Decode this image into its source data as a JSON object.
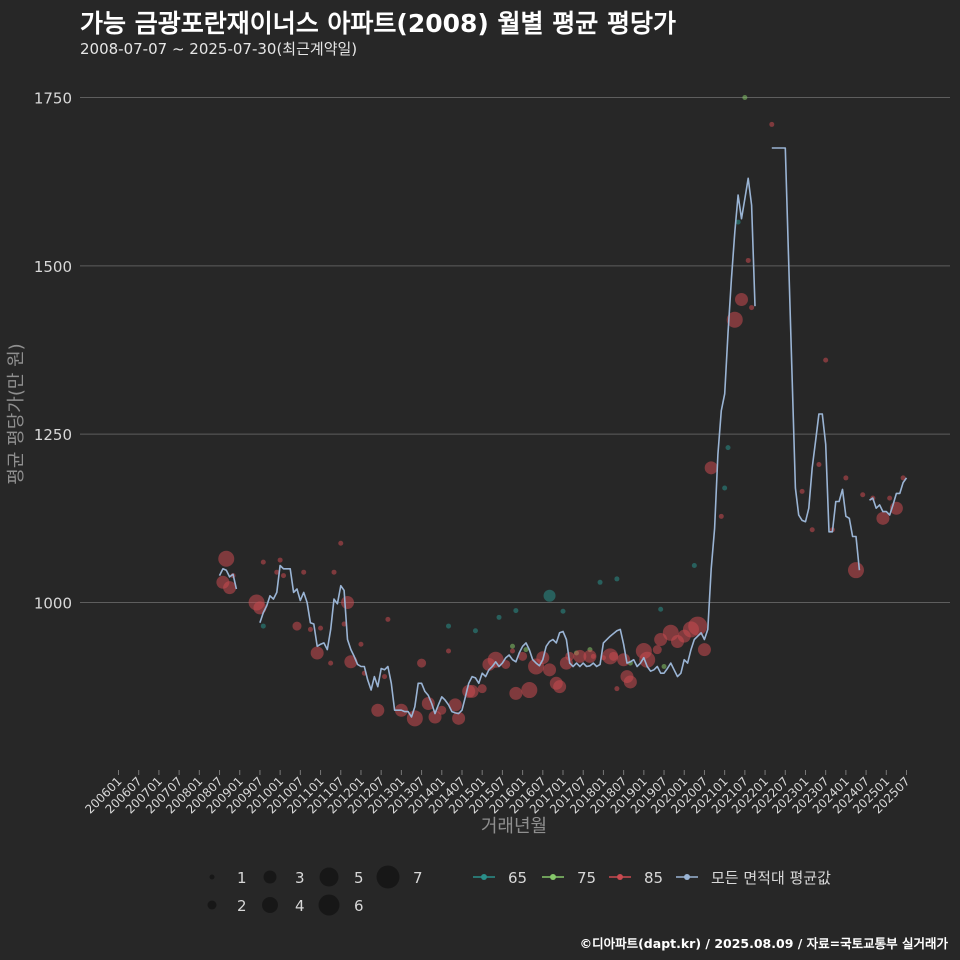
{
  "header": {
    "title": "가능 금광포란재이너스 아파트(2008) 월별 평균 평당가",
    "subtitle": "2008-07-07 ~ 2025-07-30(최근계약일)"
  },
  "credit": "©디아파트(dapt.kr) / 2025.08.09 / 자료=국토교통부 실거래가",
  "colors": {
    "background": "#272727",
    "grid": "#5e5e5e",
    "avg_line": "#9ab4d4",
    "area_65": "#2a8f8a",
    "area_75": "#86c76a",
    "area_85": "#c94a50"
  },
  "chart_data": {
    "type": "line+scatter",
    "xlabel": "거래년월",
    "ylabel": "평균 평당가(만 원)",
    "ylim": [
      770,
      1760
    ],
    "yticks": [
      1000,
      1250,
      1500,
      1750
    ],
    "grid": "horizontal",
    "x_ticks": [
      "200601",
      "200607",
      "200701",
      "200707",
      "200801",
      "200807",
      "200901",
      "200907",
      "201001",
      "201007",
      "201101",
      "201107",
      "201201",
      "201207",
      "201301",
      "201307",
      "201401",
      "201407",
      "201501",
      "201507",
      "201601",
      "201607",
      "201701",
      "201707",
      "201801",
      "201807",
      "201901",
      "201907",
      "202001",
      "202007",
      "202101",
      "202107",
      "202201",
      "202207",
      "202301",
      "202307",
      "202401",
      "202407",
      "202501",
      "202507"
    ],
    "size_legend": {
      "title": "",
      "values": [
        1,
        2,
        3,
        4,
        5,
        6,
        7
      ]
    },
    "color_legend": [
      "65",
      "75",
      "85",
      "모든 면적대 평균값"
    ],
    "series_avg": {
      "name": "모든 면적대 평균값",
      "points": [
        [
          "2008-07",
          1040
        ],
        [
          "2008-08",
          1050
        ],
        [
          "2008-09",
          1048
        ],
        [
          "2008-10",
          1038
        ],
        [
          "2008-11",
          1042
        ],
        [
          "2008-12",
          1020
        ],
        [
          "2009-07",
          970
        ],
        [
          "2009-08",
          985
        ],
        [
          "2009-09",
          995
        ],
        [
          "2009-10",
          1010
        ],
        [
          "2009-11",
          1005
        ],
        [
          "2009-12",
          1015
        ],
        [
          "2010-01",
          1055
        ],
        [
          "2010-02",
          1050
        ],
        [
          "2010-03",
          1050
        ],
        [
          "2010-04",
          1050
        ],
        [
          "2010-05",
          1015
        ],
        [
          "2010-06",
          1020
        ],
        [
          "2010-07",
          1003
        ],
        [
          "2010-08",
          1015
        ],
        [
          "2010-09",
          1000
        ],
        [
          "2010-10",
          970
        ],
        [
          "2010-11",
          968
        ],
        [
          "2010-12",
          935
        ],
        [
          "2011-01",
          938
        ],
        [
          "2011-02",
          940
        ],
        [
          "2011-03",
          930
        ],
        [
          "2011-04",
          960
        ],
        [
          "2011-05",
          1005
        ],
        [
          "2011-06",
          998
        ],
        [
          "2011-07",
          1025
        ],
        [
          "2011-08",
          1018
        ],
        [
          "2011-09",
          945
        ],
        [
          "2011-10",
          930
        ],
        [
          "2011-11",
          920
        ],
        [
          "2011-12",
          908
        ],
        [
          "2012-01",
          905
        ],
        [
          "2012-02",
          905
        ],
        [
          "2012-03",
          885
        ],
        [
          "2012-04",
          870
        ],
        [
          "2012-05",
          890
        ],
        [
          "2012-06",
          875
        ],
        [
          "2012-07",
          902
        ],
        [
          "2012-08",
          900
        ],
        [
          "2012-09",
          905
        ],
        [
          "2012-10",
          880
        ],
        [
          "2012-11",
          840
        ],
        [
          "2012-12",
          840
        ],
        [
          "2013-01",
          840
        ],
        [
          "2013-02",
          838
        ],
        [
          "2013-03",
          838
        ],
        [
          "2013-04",
          830
        ],
        [
          "2013-05",
          845
        ],
        [
          "2013-06",
          880
        ],
        [
          "2013-07",
          880
        ],
        [
          "2013-08",
          868
        ],
        [
          "2013-09",
          862
        ],
        [
          "2013-10",
          850
        ],
        [
          "2013-11",
          835
        ],
        [
          "2013-12",
          848
        ],
        [
          "2014-01",
          860
        ],
        [
          "2014-02",
          855
        ],
        [
          "2014-03",
          848
        ],
        [
          "2014-04",
          838
        ],
        [
          "2014-05",
          836
        ],
        [
          "2014-06",
          835
        ],
        [
          "2014-07",
          840
        ],
        [
          "2014-08",
          860
        ],
        [
          "2014-09",
          880
        ],
        [
          "2014-10",
          890
        ],
        [
          "2014-11",
          888
        ],
        [
          "2014-12",
          880
        ],
        [
          "2015-01",
          895
        ],
        [
          "2015-02",
          890
        ],
        [
          "2015-03",
          900
        ],
        [
          "2015-04",
          905
        ],
        [
          "2015-05",
          912
        ],
        [
          "2015-06",
          905
        ],
        [
          "2015-07",
          910
        ],
        [
          "2015-08",
          918
        ],
        [
          "2015-09",
          922
        ],
        [
          "2015-10",
          915
        ],
        [
          "2015-11",
          912
        ],
        [
          "2015-12",
          925
        ],
        [
          "2016-01",
          935
        ],
        [
          "2016-02",
          940
        ],
        [
          "2016-03",
          930
        ],
        [
          "2016-04",
          915
        ],
        [
          "2016-05",
          910
        ],
        [
          "2016-06",
          906
        ],
        [
          "2016-07",
          915
        ],
        [
          "2016-08",
          935
        ],
        [
          "2016-09",
          942
        ],
        [
          "2016-10",
          945
        ],
        [
          "2016-11",
          940
        ],
        [
          "2016-12",
          955
        ],
        [
          "2017-01",
          957
        ],
        [
          "2017-02",
          945
        ],
        [
          "2017-03",
          910
        ],
        [
          "2017-04",
          905
        ],
        [
          "2017-05",
          910
        ],
        [
          "2017-06",
          905
        ],
        [
          "2017-07",
          910
        ],
        [
          "2017-08",
          905
        ],
        [
          "2017-09",
          906
        ],
        [
          "2017-10",
          910
        ],
        [
          "2017-11",
          905
        ],
        [
          "2017-12",
          908
        ]
      ]
    },
    "series_avg_2": {
      "points": [
        [
          "2009-07",
          970
        ],
        [
          "2010-01",
          1055
        ]
      ]
    },
    "points_65": [
      [
        "2009-08",
        965
      ],
      [
        "2014-03",
        965
      ],
      [
        "2014-11",
        958
      ],
      [
        "2015-06",
        978
      ],
      [
        "2015-11",
        988
      ],
      [
        "2016-09",
        1010
      ],
      [
        "2017-01",
        987
      ],
      [
        "2017-12",
        1030
      ],
      [
        "2018-05",
        1035
      ],
      [
        "2019-06",
        990
      ],
      [
        "2020-04",
        1055
      ],
      [
        "2021-01",
        1170
      ],
      [
        "2021-02",
        1230
      ],
      [
        "2021-05",
        1565
      ]
    ],
    "points_75": [
      [
        "2015-10",
        935
      ],
      [
        "2016-02",
        930
      ],
      [
        "2017-05",
        925
      ],
      [
        "2017-09",
        930
      ],
      [
        "2018-09",
        910
      ],
      [
        "2019-07",
        905
      ],
      [
        "2021-07",
        1750
      ]
    ],
    "points_85": [
      [
        "2008-08",
        1030,
        3
      ],
      [
        "2008-09",
        1065,
        4
      ],
      [
        "2008-10",
        1022,
        3
      ],
      [
        "2008-11",
        1040,
        1
      ],
      [
        "2009-06",
        1000,
        4
      ],
      [
        "2009-07",
        992,
        3
      ],
      [
        "2009-08",
        1060,
        1
      ],
      [
        "2009-12",
        1045,
        1
      ],
      [
        "2010-01",
        1063,
        1
      ],
      [
        "2010-02",
        1040,
        1
      ],
      [
        "2010-06",
        965,
        2
      ],
      [
        "2010-08",
        1045,
        1
      ],
      [
        "2010-10",
        960,
        1
      ],
      [
        "2010-12",
        925,
        3
      ],
      [
        "2011-01",
        962,
        1
      ],
      [
        "2011-04",
        910,
        1
      ],
      [
        "2011-05",
        1045,
        1
      ],
      [
        "2011-07",
        1088,
        1
      ],
      [
        "2011-08",
        968,
        1
      ],
      [
        "2011-09",
        1000,
        3
      ],
      [
        "2011-10",
        912,
        3
      ],
      [
        "2012-01",
        938,
        1
      ],
      [
        "2012-02",
        895,
        1
      ],
      [
        "2012-06",
        840,
        3
      ],
      [
        "2012-08",
        890,
        1
      ],
      [
        "2012-09",
        975,
        1
      ],
      [
        "2013-01",
        840,
        3
      ],
      [
        "2013-05",
        828,
        4
      ],
      [
        "2013-07",
        910,
        2
      ],
      [
        "2013-09",
        850,
        3
      ],
      [
        "2013-11",
        830,
        3
      ],
      [
        "2014-01",
        840,
        2
      ],
      [
        "2014-03",
        928,
        1
      ],
      [
        "2014-05",
        848,
        3
      ],
      [
        "2014-06",
        828,
        3
      ],
      [
        "2014-09",
        868,
        3
      ],
      [
        "2014-10",
        868,
        3
      ],
      [
        "2015-01",
        872,
        2
      ],
      [
        "2015-03",
        908,
        3
      ],
      [
        "2015-05",
        915,
        4
      ],
      [
        "2015-08",
        908,
        2
      ],
      [
        "2015-10",
        928,
        1
      ],
      [
        "2015-11",
        865,
        3
      ],
      [
        "2016-01",
        920,
        2
      ],
      [
        "2016-03",
        870,
        4
      ],
      [
        "2016-05",
        905,
        4
      ],
      [
        "2016-07",
        918,
        3
      ],
      [
        "2016-09",
        900,
        3
      ],
      [
        "2016-11",
        880,
        3
      ],
      [
        "2016-12",
        875,
        3
      ],
      [
        "2017-02",
        910,
        3
      ],
      [
        "2017-03",
        920,
        2
      ],
      [
        "2017-06",
        920,
        3
      ],
      [
        "2017-09",
        920,
        3
      ],
      [
        "2017-10",
        920,
        1
      ],
      [
        "2018-01",
        918,
        1
      ],
      [
        "2018-03",
        920,
        4
      ],
      [
        "2018-04",
        920,
        2
      ],
      [
        "2018-05",
        872,
        1
      ],
      [
        "2018-07",
        915,
        3
      ],
      [
        "2018-08",
        890,
        3
      ],
      [
        "2018-09",
        882,
        3
      ],
      [
        "2019-01",
        928,
        4
      ],
      [
        "2019-02",
        915,
        4
      ],
      [
        "2019-05",
        930,
        2
      ],
      [
        "2019-06",
        945,
        3
      ],
      [
        "2019-09",
        955,
        4
      ],
      [
        "2019-11",
        942,
        3
      ],
      [
        "2020-01",
        950,
        3
      ],
      [
        "2020-03",
        960,
        4
      ],
      [
        "2020-05",
        965,
        5
      ],
      [
        "2020-07",
        930,
        3
      ],
      [
        "2020-09",
        1200,
        3
      ],
      [
        "2020-12",
        1128,
        1
      ],
      [
        "2021-04",
        1420,
        4
      ],
      [
        "2021-06",
        1450,
        3
      ],
      [
        "2021-08",
        1508,
        1
      ],
      [
        "2021-09",
        1438,
        1
      ],
      [
        "2022-03",
        1710,
        1
      ],
      [
        "2022-12",
        1165,
        1
      ],
      [
        "2023-03",
        1108,
        1
      ],
      [
        "2023-05",
        1205,
        1
      ],
      [
        "2023-07",
        1360,
        1
      ],
      [
        "2023-09",
        1108,
        1
      ],
      [
        "2024-01",
        1185,
        1
      ],
      [
        "2024-04",
        1048,
        4
      ],
      [
        "2024-06",
        1160,
        1
      ],
      [
        "2024-09",
        1155,
        1
      ],
      [
        "2024-12",
        1125,
        3
      ],
      [
        "2025-02",
        1155,
        1
      ],
      [
        "2025-04",
        1140,
        3
      ],
      [
        "2025-06",
        1185,
        1
      ]
    ]
  }
}
